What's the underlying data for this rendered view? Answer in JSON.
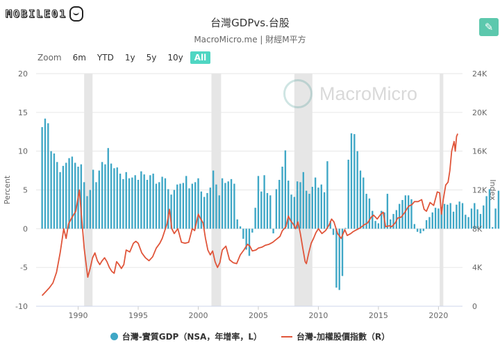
{
  "logo": {
    "text": "MOBILE01"
  },
  "title": "台灣GDPvs.台股",
  "subtitle": "MacroMicro.me | 財經M平方",
  "range_selector": {
    "zoom_label": "Zoom",
    "buttons": [
      "6m",
      "YTD",
      "1y",
      "5y",
      "10y",
      "All"
    ],
    "active": "All"
  },
  "watermark": "MacroMicro",
  "colors": {
    "bar": "#3fa7c6",
    "line": "#e0553a",
    "band": "#e6e6e6",
    "accent": "#4fd6c3"
  },
  "chart_data": {
    "type": "bar+line",
    "x_ticks": [
      "1990",
      "1995",
      "2000",
      "2005",
      "2010",
      "2015",
      "2020"
    ],
    "left_axis": {
      "label": "Percent",
      "ticks": [
        "20",
        "15",
        "10",
        "5",
        "0",
        "-5",
        "-10"
      ],
      "min": -10,
      "max": 20
    },
    "right_axis": {
      "label": "Index",
      "ticks": [
        "24K",
        "20K",
        "16K",
        "12K",
        "8K",
        "4K",
        "0"
      ],
      "min": 0,
      "max": 24000
    },
    "recession_bands": [
      [
        1990.5,
        1991.2
      ],
      [
        2001.1,
        2001.9
      ],
      [
        2008.0,
        2009.5
      ],
      [
        2020.1,
        2020.4
      ]
    ],
    "series": [
      {
        "name": "台灣-實質GDP（NSA，年增率，L）",
        "type": "bar",
        "x_start": 1987.0,
        "step": 0.25,
        "values": [
          13.1,
          14.2,
          13.6,
          10.0,
          9.7,
          8.6,
          7.3,
          8.1,
          8.5,
          9.1,
          9.3,
          8.5,
          8.0,
          8.3,
          6.0,
          4.2,
          5.0,
          7.6,
          6.0,
          7.5,
          8.6,
          8.3,
          10.4,
          8.4,
          7.8,
          7.9,
          7.1,
          6.4,
          7.3,
          6.5,
          6.6,
          6.9,
          6.3,
          7.4,
          7.0,
          6.3,
          6.9,
          7.1,
          5.8,
          6.0,
          6.7,
          6.5,
          5.1,
          4.4,
          5.0,
          5.7,
          5.8,
          5.9,
          6.8,
          5.2,
          5.8,
          6.0,
          6.5,
          4.8,
          4.1,
          4.6,
          5.3,
          7.5,
          5.7,
          4.3,
          6.5,
          5.9,
          6.1,
          6.4,
          5.8,
          1.2,
          0.3,
          -1.3,
          -2.7,
          -3.5,
          -0.5,
          2.7,
          6.8,
          4.8,
          6.9,
          4.6,
          4.3,
          -0.6,
          5.1,
          6.3,
          8.0,
          10.1,
          6.2,
          4.4,
          4.1,
          6.1,
          6.0,
          7.3,
          4.9,
          4.5,
          5.4,
          6.6,
          5.3,
          5.7,
          4.7,
          8.7,
          1.0,
          -0.8,
          -7.6,
          -7.9,
          -6.1,
          0.1,
          8.9,
          12.3,
          12.2,
          10.0,
          7.5,
          6.6,
          4.5,
          3.9,
          2.3,
          1.0,
          0.7,
          2.3,
          2.1,
          4.5,
          1.2,
          1.9,
          2.4,
          3.2,
          3.7,
          4.3,
          4.3,
          3.8,
          0.6,
          -0.4,
          -0.6,
          -0.3,
          1.1,
          1.5,
          2.1,
          2.7,
          2.6,
          2.8,
          3.2,
          3.1,
          3.3,
          2.2,
          3.1,
          3.5,
          3.3,
          1.8,
          1.5,
          2.6,
          3.3,
          2.5,
          1.9,
          3.0,
          4.2,
          5.1,
          0.2,
          2.6,
          4.9,
          9.2,
          7.4
        ]
      },
      {
        "name": "台灣-加權股價指數（R）",
        "type": "line",
        "points": [
          [
            1987.0,
            1100
          ],
          [
            1987.3,
            1500
          ],
          [
            1987.6,
            1900
          ],
          [
            1987.9,
            2400
          ],
          [
            1988.2,
            3500
          ],
          [
            1988.5,
            5500
          ],
          [
            1988.8,
            8000
          ],
          [
            1989.0,
            7000
          ],
          [
            1989.2,
            8500
          ],
          [
            1989.5,
            9200
          ],
          [
            1989.8,
            9800
          ],
          [
            1990.1,
            12000
          ],
          [
            1990.3,
            9000
          ],
          [
            1990.5,
            6000
          ],
          [
            1990.7,
            4000
          ],
          [
            1990.8,
            3000
          ],
          [
            1991.0,
            3900
          ],
          [
            1991.2,
            5000
          ],
          [
            1991.4,
            5500
          ],
          [
            1991.6,
            4700
          ],
          [
            1991.8,
            4300
          ],
          [
            1992.0,
            4700
          ],
          [
            1992.2,
            5000
          ],
          [
            1992.4,
            4600
          ],
          [
            1992.6,
            4000
          ],
          [
            1992.8,
            3600
          ],
          [
            1993.0,
            3400
          ],
          [
            1993.2,
            4600
          ],
          [
            1993.4,
            4300
          ],
          [
            1993.6,
            3900
          ],
          [
            1993.8,
            4300
          ],
          [
            1994.0,
            5800
          ],
          [
            1994.3,
            5600
          ],
          [
            1994.6,
            6500
          ],
          [
            1994.8,
            6700
          ],
          [
            1995.0,
            6500
          ],
          [
            1995.3,
            5500
          ],
          [
            1995.6,
            5000
          ],
          [
            1995.9,
            4700
          ],
          [
            1996.2,
            5100
          ],
          [
            1996.5,
            6000
          ],
          [
            1996.8,
            6500
          ],
          [
            1997.0,
            7000
          ],
          [
            1997.4,
            8500
          ],
          [
            1997.6,
            10000
          ],
          [
            1997.8,
            8000
          ],
          [
            1998.0,
            7500
          ],
          [
            1998.3,
            8000
          ],
          [
            1998.6,
            6600
          ],
          [
            1998.9,
            6500
          ],
          [
            1999.2,
            6600
          ],
          [
            1999.5,
            8000
          ],
          [
            1999.7,
            7800
          ],
          [
            2000.0,
            9500
          ],
          [
            2000.2,
            9000
          ],
          [
            2000.4,
            8600
          ],
          [
            2000.6,
            7000
          ],
          [
            2000.8,
            5800
          ],
          [
            2001.0,
            5300
          ],
          [
            2001.2,
            5700
          ],
          [
            2001.4,
            4600
          ],
          [
            2001.6,
            4000
          ],
          [
            2001.8,
            4500
          ],
          [
            2002.0,
            5800
          ],
          [
            2002.3,
            6200
          ],
          [
            2002.6,
            4800
          ],
          [
            2002.9,
            4500
          ],
          [
            2003.2,
            4400
          ],
          [
            2003.5,
            5300
          ],
          [
            2003.8,
            5800
          ],
          [
            2004.1,
            6400
          ],
          [
            2004.3,
            6200
          ],
          [
            2004.5,
            5700
          ],
          [
            2004.8,
            5800
          ],
          [
            2005.0,
            6000
          ],
          [
            2005.3,
            6100
          ],
          [
            2005.6,
            6300
          ],
          [
            2005.9,
            6400
          ],
          [
            2006.2,
            6600
          ],
          [
            2006.5,
            6900
          ],
          [
            2006.8,
            7200
          ],
          [
            2007.0,
            7800
          ],
          [
            2007.3,
            8200
          ],
          [
            2007.5,
            9300
          ],
          [
            2007.7,
            8800
          ],
          [
            2007.9,
            8500
          ],
          [
            2008.1,
            8000
          ],
          [
            2008.3,
            8700
          ],
          [
            2008.5,
            7500
          ],
          [
            2008.7,
            6000
          ],
          [
            2008.9,
            4600
          ],
          [
            2009.0,
            4400
          ],
          [
            2009.2,
            5500
          ],
          [
            2009.4,
            6500
          ],
          [
            2009.6,
            7000
          ],
          [
            2009.8,
            7600
          ],
          [
            2010.0,
            8000
          ],
          [
            2010.3,
            7500
          ],
          [
            2010.6,
            7800
          ],
          [
            2010.9,
            8400
          ],
          [
            2011.1,
            9000
          ],
          [
            2011.3,
            8700
          ],
          [
            2011.6,
            7500
          ],
          [
            2011.9,
            7000
          ],
          [
            2012.2,
            7900
          ],
          [
            2012.4,
            7300
          ],
          [
            2012.7,
            7500
          ],
          [
            2012.9,
            7700
          ],
          [
            2013.2,
            7900
          ],
          [
            2013.5,
            8100
          ],
          [
            2013.8,
            8400
          ],
          [
            2014.1,
            8600
          ],
          [
            2014.4,
            9200
          ],
          [
            2014.6,
            9400
          ],
          [
            2014.9,
            9000
          ],
          [
            2015.2,
            9500
          ],
          [
            2015.4,
            9700
          ],
          [
            2015.6,
            8200
          ],
          [
            2015.9,
            8300
          ],
          [
            2016.1,
            8200
          ],
          [
            2016.4,
            8600
          ],
          [
            2016.6,
            9100
          ],
          [
            2016.9,
            9200
          ],
          [
            2017.2,
            9700
          ],
          [
            2017.5,
            10300
          ],
          [
            2017.8,
            10500
          ],
          [
            2018.0,
            10800
          ],
          [
            2018.3,
            10800
          ],
          [
            2018.6,
            11000
          ],
          [
            2018.8,
            10000
          ],
          [
            2019.0,
            9800
          ],
          [
            2019.3,
            10700
          ],
          [
            2019.6,
            10400
          ],
          [
            2019.9,
            11800
          ],
          [
            2020.1,
            11700
          ],
          [
            2020.25,
            9500
          ],
          [
            2020.4,
            11000
          ],
          [
            2020.6,
            12500
          ],
          [
            2020.8,
            12800
          ],
          [
            2020.95,
            14000
          ],
          [
            2021.1,
            16000
          ],
          [
            2021.3,
            17000
          ],
          [
            2021.4,
            16000
          ],
          [
            2021.5,
            17500
          ],
          [
            2021.6,
            17800
          ]
        ]
      }
    ]
  },
  "legend": [
    {
      "label": "台灣-實質GDP（NSA，年增率，L）"
    },
    {
      "label": "台灣-加權股價指數（R）"
    }
  ]
}
